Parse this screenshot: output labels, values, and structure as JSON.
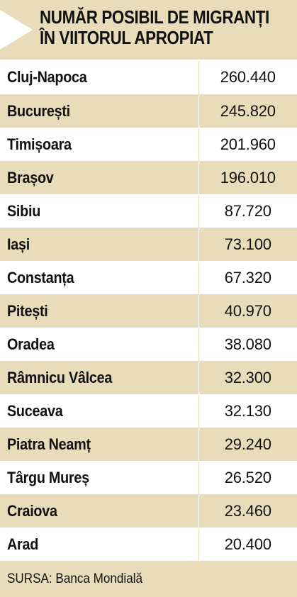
{
  "chart_data": {
    "type": "table",
    "title_lines": [
      "NUMĂR POSIBIL DE MIGRANȚI",
      "ÎN VIITORUL APROPIAT"
    ],
    "rows": [
      {
        "city": "Cluj-Napoca",
        "value": "260.440"
      },
      {
        "city": "București",
        "value": "245.820"
      },
      {
        "city": "Timișoara",
        "value": "201.960"
      },
      {
        "city": "Brașov",
        "value": "196.010"
      },
      {
        "city": "Sibiu",
        "value": "87.720"
      },
      {
        "city": "Iași",
        "value": "73.100"
      },
      {
        "city": "Constanța",
        "value": "67.320"
      },
      {
        "city": "Pitești",
        "value": "40.970"
      },
      {
        "city": "Oradea",
        "value": "38.080"
      },
      {
        "city": "Râmnicu Vâlcea",
        "value": "32.300"
      },
      {
        "city": "Suceava",
        "value": "32.130"
      },
      {
        "city": "Piatra Neamț",
        "value": "29.240"
      },
      {
        "city": "Târgu Mureș",
        "value": "26.520"
      },
      {
        "city": "Craiova",
        "value": "23.460"
      },
      {
        "city": "Arad",
        "value": "20.400"
      }
    ],
    "source": "SURSA: Banca Mondială"
  },
  "colors": {
    "beige": "#e9dcbb",
    "white": "#ffffff",
    "text": "#111111"
  }
}
